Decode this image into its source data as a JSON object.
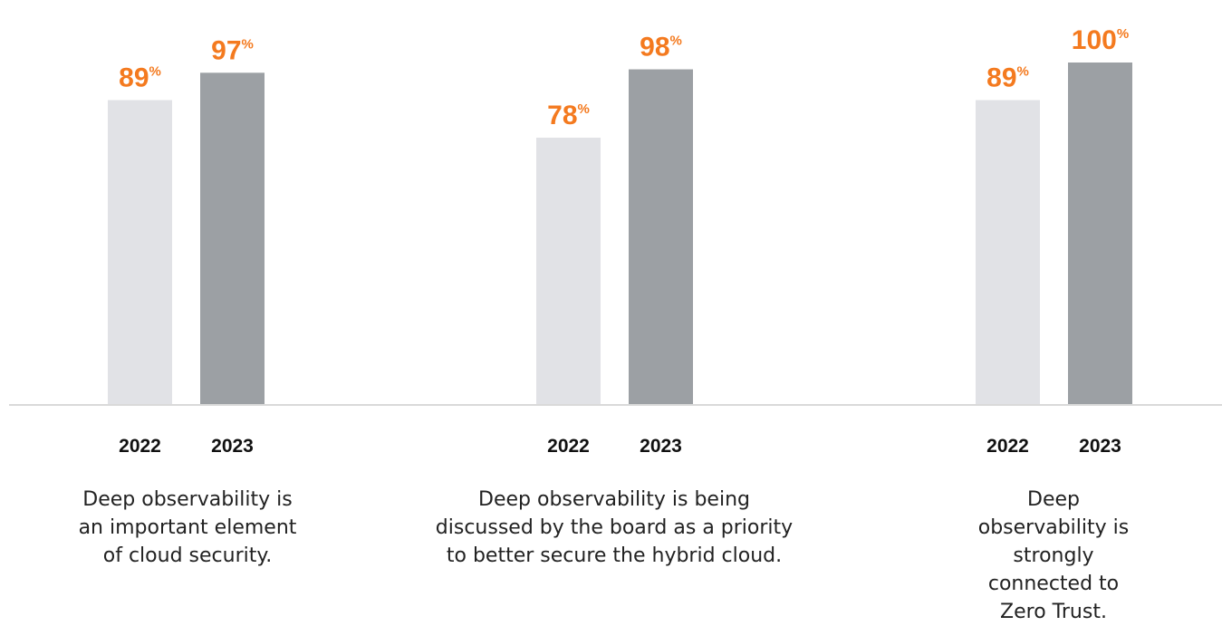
{
  "chart_data": {
    "type": "bar",
    "ylim": [
      0,
      100
    ],
    "series_colors": {
      "2022": "#e1e2e6",
      "2023": "#9ca0a4"
    },
    "accent_color": "#f47a1f",
    "value_suffix": "%",
    "groups": [
      {
        "categories": [
          "2022",
          "2023"
        ],
        "values": [
          89,
          97
        ],
        "caption": "Deep observability is an important element of cloud security."
      },
      {
        "categories": [
          "2022",
          "2023"
        ],
        "values": [
          78,
          98
        ],
        "caption": "Deep observability is being discussed by the board as a priority to better secure the hybrid cloud."
      },
      {
        "categories": [
          "2022",
          "2023"
        ],
        "values": [
          89,
          100
        ],
        "caption": "Deep observability is strongly connected to Zero Trust."
      }
    ]
  }
}
